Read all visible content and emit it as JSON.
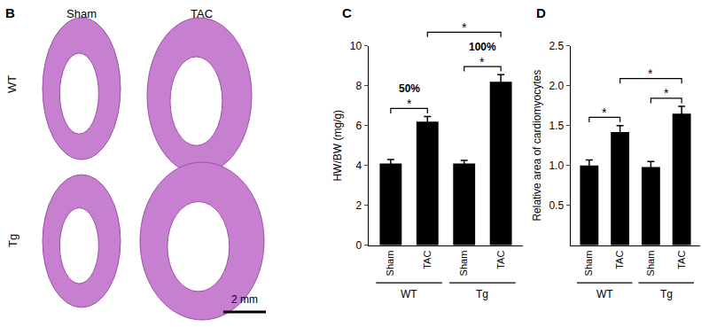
{
  "panel_b": {
    "panel": "B",
    "columns": [
      "Sham",
      "TAC"
    ],
    "rows": [
      "WT",
      "Tg"
    ],
    "scale_bar": "2 mm"
  },
  "chart_data": [
    {
      "type": "bar",
      "panel": "C",
      "y_label": "HW/BW (mg/g)",
      "categories": [
        "Sham",
        "TAC",
        "Sham",
        "TAC"
      ],
      "groups": [
        "WT",
        "WT",
        "Tg",
        "Tg"
      ],
      "values": [
        4.1,
        6.2,
        4.1,
        8.2
      ],
      "errors": [
        0.2,
        0.25,
        0.15,
        0.35
      ],
      "color": "#000000",
      "ylim": [
        0,
        10
      ],
      "yticks": [
        0,
        2,
        4,
        6,
        8,
        10
      ],
      "brackets": [
        {
          "from": 0,
          "to": 1,
          "label": "*",
          "note": "50%"
        },
        {
          "from": 2,
          "to": 3,
          "label": "*",
          "note": "100%"
        },
        {
          "from": 1,
          "to": 3,
          "label": "*"
        }
      ]
    },
    {
      "type": "bar",
      "panel": "D",
      "y_label": "Relative area of cardiomyocytes",
      "categories": [
        "Sham",
        "TAC",
        "Sham",
        "TAC"
      ],
      "groups": [
        "WT",
        "WT",
        "Tg",
        "Tg"
      ],
      "values": [
        1.0,
        1.42,
        0.98,
        1.65
      ],
      "errors": [
        0.07,
        0.08,
        0.07,
        0.09
      ],
      "color": "#000000",
      "ylim": [
        0,
        2.5
      ],
      "yticks": [
        0.5,
        {
          "value": 1,
          "label": "1.0"
        },
        1.5,
        {
          "value": 2,
          "label": "2.0"
        },
        2.5
      ],
      "brackets": [
        {
          "from": 0,
          "to": 1,
          "label": "*"
        },
        {
          "from": 2,
          "to": 3,
          "label": "*"
        },
        {
          "from": 1,
          "to": 3,
          "label": "*"
        }
      ]
    }
  ]
}
